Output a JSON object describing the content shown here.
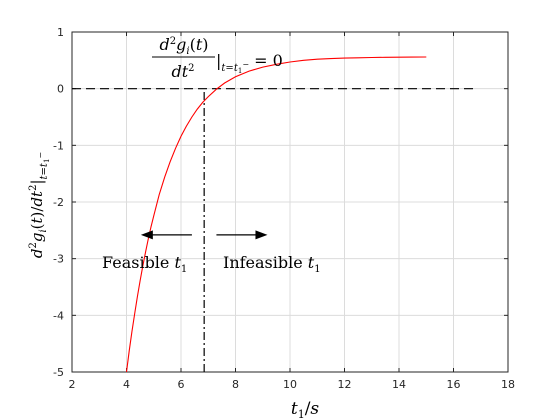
{
  "chart_data": {
    "type": "line",
    "title": "",
    "xlabel": "t₁/s",
    "ylabel": "d²gᵢ(t)/dt²|t=t₁⁻",
    "xlim": [
      2,
      18
    ],
    "ylim": [
      -5,
      1
    ],
    "xticks": [
      2,
      4,
      6,
      8,
      10,
      12,
      14,
      16,
      18
    ],
    "yticks": [
      -5,
      -4,
      -3,
      -2,
      -1,
      0,
      1
    ],
    "xtick_labels": [
      "2",
      "4",
      "6",
      "8",
      "10",
      "12",
      "14",
      "16",
      "18"
    ],
    "ytick_labels": [
      "-5",
      "-4",
      "-3",
      "-2",
      "-1",
      "0",
      "1"
    ],
    "grid": true,
    "series": [
      {
        "color": "#ff0000",
        "x": [
          4.0,
          4.1,
          4.2,
          4.3,
          4.4,
          4.5,
          4.6,
          4.7,
          4.8,
          4.9,
          5.0,
          5.2,
          5.4,
          5.6,
          5.8,
          6.0,
          6.2,
          6.4,
          6.6,
          6.8,
          7.0,
          7.3,
          7.6,
          8.0,
          8.5,
          9.0,
          9.5,
          10.0,
          10.5,
          11.0,
          11.5,
          12.0,
          12.5,
          13.0,
          13.5,
          14.0,
          14.5,
          15.0
        ],
        "y": [
          -5.0,
          -4.63,
          -4.29,
          -3.97,
          -3.67,
          -3.39,
          -3.13,
          -2.88,
          -2.65,
          -2.44,
          -2.24,
          -1.87,
          -1.56,
          -1.29,
          -1.05,
          -0.84,
          -0.66,
          -0.5,
          -0.36,
          -0.24,
          -0.14,
          -0.01,
          0.1,
          0.21,
          0.31,
          0.38,
          0.43,
          0.47,
          0.5,
          0.52,
          0.53,
          0.54,
          0.545,
          0.55,
          0.553,
          0.555,
          0.557,
          0.558
        ]
      }
    ],
    "reference_lines": [
      {
        "orientation": "horizontal",
        "value": 0,
        "style": "dashed",
        "color": "#000000",
        "from": 2,
        "to": 16.8
      },
      {
        "orientation": "vertical",
        "value": 6.85,
        "style": "dashdot",
        "color": "#000000",
        "from": -5,
        "to": 0
      }
    ],
    "annotations": {
      "condition_label": "d²gᵢ(t)/dt²|t=t₁⁻ = 0",
      "feasible_label": "Feasible t₁",
      "infeasible_label": "Infeasible t₁",
      "left_arrow_at": {
        "x_from": 6.4,
        "x_to": 4.6,
        "y": -2.58
      },
      "right_arrow_at": {
        "x_from": 7.3,
        "x_to": 9.1,
        "y": -2.58
      }
    }
  }
}
